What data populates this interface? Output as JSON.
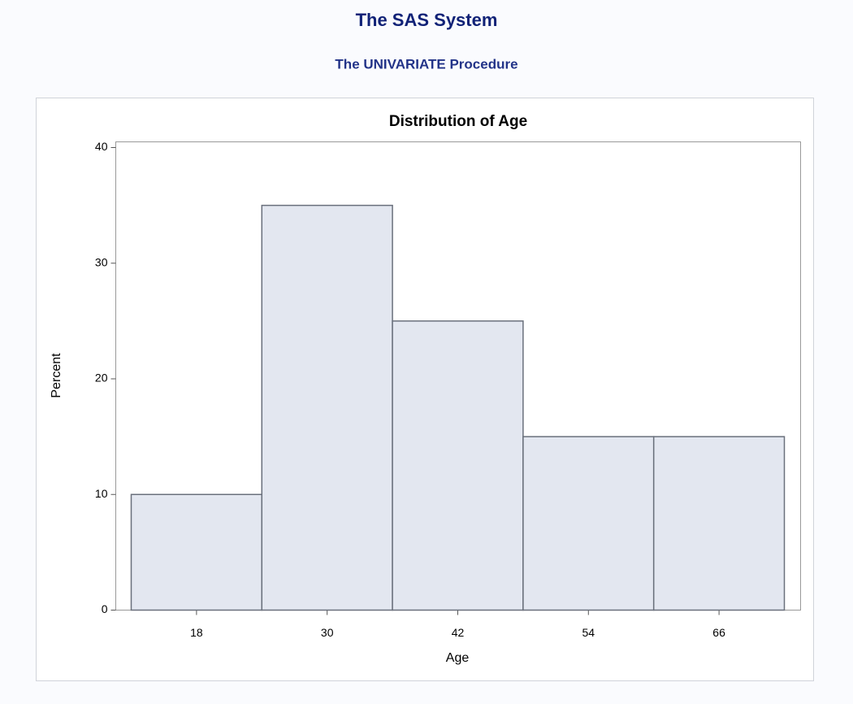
{
  "header": {
    "title": "The SAS System",
    "subtitle": "The UNIVARIATE Procedure"
  },
  "chart_data": {
    "type": "histogram",
    "title": "Distribution of Age",
    "bins": [
      12,
      24,
      36,
      48,
      60,
      72
    ],
    "values": [
      10,
      35,
      25,
      15,
      15
    ],
    "color": "#e3e7f0",
    "x_label": "Age",
    "y_label": "Percent",
    "xlim": [
      12,
      72
    ],
    "xticks": [
      18,
      30,
      42,
      54,
      66
    ],
    "ylim": [
      0,
      40
    ],
    "yticks": [
      0,
      10,
      20,
      30,
      40
    ]
  }
}
